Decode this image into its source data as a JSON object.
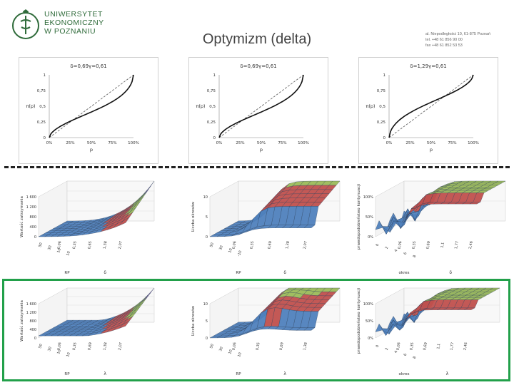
{
  "header": {
    "university": [
      "UNIWERSYTET",
      "EKONOMICZNY",
      "W POZNANIU"
    ],
    "title": "Optymizm (delta)",
    "address": [
      "al. Niepodległości 10, 61-875 Poznań",
      "tel. +48 61 856 90 00",
      "fax +48 61 852 53 53"
    ]
  },
  "curves": [
    {
      "title": "δ=0,69γ=0,61",
      "ylabel": "π(p)",
      "xlabel": "p",
      "yticks": [
        "0",
        "0,25",
        "0,5",
        "0,75",
        "1"
      ],
      "xticks": [
        "0%",
        "25%",
        "50%",
        "75%",
        "100%"
      ]
    },
    {
      "title": "δ=0,69γ=0,61",
      "ylabel": "π(p)",
      "xlabel": "p",
      "yticks": [
        "0",
        "0,25",
        "0,5",
        "0,75",
        "1"
      ],
      "xticks": [
        "0%",
        "25%",
        "50%",
        "75%",
        "100%"
      ]
    },
    {
      "title": "δ=1,29γ=0,61",
      "ylabel": "π(p)",
      "xlabel": "p",
      "yticks": [
        "0",
        "0,25",
        "0,5",
        "0,75",
        "1"
      ],
      "xticks": [
        "0%",
        "25%",
        "50%",
        "75%",
        "100%"
      ]
    }
  ],
  "surfaces_top": [
    {
      "zlabel": "Wartość zatrzymania",
      "zticks": [
        "0",
        "400",
        "800",
        "1 200",
        "1 600"
      ],
      "xlabel1": "RP",
      "xlabel2": "δ",
      "depth_ticks": [
        "50",
        "30",
        "10",
        "10"
      ],
      "width_ticks": [
        "0,06",
        "0,35",
        "0,65",
        "1,38",
        "2,07"
      ]
    },
    {
      "zlabel": "Liczba okresów",
      "zticks": [
        "0",
        "5",
        "10"
      ],
      "xlabel1": "RP",
      "xlabel2": "δ",
      "depth_ticks": [
        "50",
        "30",
        "10",
        "-10"
      ],
      "width_ticks": [
        "0,06",
        "0,35",
        "0,69",
        "1,38",
        "2,07"
      ]
    },
    {
      "zlabel": "prawdopodobieństwo kontynuacji",
      "zticks": [
        "0%",
        "50%",
        "100%"
      ],
      "xlabel1": "okres",
      "xlabel2": "δ",
      "depth_ticks": [
        "0",
        "2",
        "4",
        "6",
        "8"
      ],
      "width_ticks": [
        "0,06",
        "0,35",
        "0,69",
        "1,1",
        "1,77",
        "2,46"
      ]
    }
  ],
  "surfaces_bottom": [
    {
      "zlabel": "Wartość zatrzymania",
      "zticks": [
        "0",
        "400",
        "800",
        "1 200",
        "1 600"
      ],
      "xlabel1": "RP",
      "xlabel2": "λ",
      "depth_ticks": [
        "50",
        "30",
        "10",
        "10"
      ],
      "width_ticks": [
        "0,06",
        "0,35",
        "0,69",
        "1,38",
        "2,07"
      ]
    },
    {
      "zlabel": "Liczba okresów",
      "zticks": [
        "0",
        "5",
        "10"
      ],
      "xlabel1": "RP",
      "xlabel2": "λ",
      "depth_ticks": [
        "50",
        "30",
        "10",
        "10"
      ],
      "width_ticks": [
        "0,06",
        "0,35",
        "0,69",
        "1,38"
      ]
    },
    {
      "zlabel": "prawdopodobieństwo kontynuacji",
      "zticks": [
        "0%",
        "50%",
        "100%"
      ],
      "xlabel1": "okres",
      "xlabel2": "λ",
      "depth_ticks": [
        "0",
        "2",
        "4",
        "6",
        "8"
      ],
      "width_ticks": [
        "0,06",
        "0,35",
        "0,69",
        "1,1",
        "1,77",
        "2,46"
      ]
    }
  ],
  "colors": {
    "green": "#2f6b3a",
    "frame": "#22a04a",
    "blue": "#4f81bd",
    "red": "#c0504d",
    "lightgreen": "#9bbb59"
  }
}
